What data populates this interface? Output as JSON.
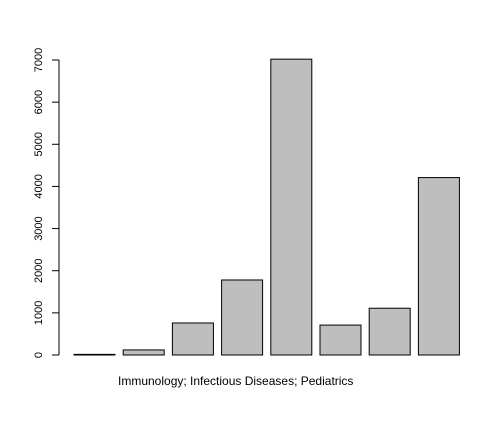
{
  "chart_data": {
    "type": "bar",
    "categories": [
      "Immunology; Infectious Diseases; Pediatrics",
      "",
      "",
      "",
      "",
      "",
      "",
      ""
    ],
    "values": [
      15,
      120,
      760,
      1780,
      7020,
      710,
      1110,
      4210
    ],
    "title": "",
    "xlabel": "",
    "ylabel": "",
    "ylim": [
      0,
      7000
    ],
    "yticks": [
      0,
      1000,
      2000,
      3000,
      4000,
      5000,
      6000,
      7000
    ],
    "ytick_labels": [
      "0",
      "1000",
      "2000",
      "3000",
      "4000",
      "5000",
      "6000",
      "7000"
    ],
    "grid": false,
    "legend": "none",
    "bar_fill": "#bebebe",
    "bar_stroke": "#000000"
  }
}
